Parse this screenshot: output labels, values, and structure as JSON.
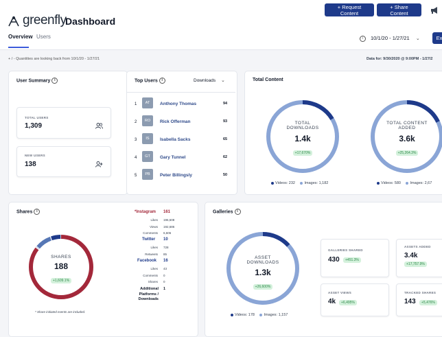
{
  "app": {
    "logo_text": "greenfly",
    "page_title": "Dashboard"
  },
  "header": {
    "request_btn": "+ Request Content",
    "share_btn": "+ Share Content",
    "date_range": "10/1/20 - 1/27/21",
    "export_btn": "Ex"
  },
  "tabs": [
    {
      "label": "Overview"
    },
    {
      "label": "Users"
    }
  ],
  "notes": {
    "left": "+ / - Quantities are looking back from 10/1/20 - 1/27/21",
    "right": "Data for: 9/30/2020 @ 9:00PM - 1/27/2"
  },
  "user_summary": {
    "title": "User Summary",
    "total_label": "TOTAL USERS",
    "total_value": "1,309",
    "new_label": "NEW USERS",
    "new_value": "138"
  },
  "top_users": {
    "title": "Top Users",
    "filter": "Downloads",
    "rows": [
      {
        "rank": "1",
        "initials": "AT",
        "name": "Anthony Thomas",
        "value": "94"
      },
      {
        "rank": "2",
        "initials": "RO",
        "name": "Rick Offerman",
        "value": "93"
      },
      {
        "rank": "3",
        "initials": "IS",
        "name": "Isabella Sacks",
        "value": "65"
      },
      {
        "rank": "4",
        "initials": "GT",
        "name": "Gary Tunnel",
        "value": "62"
      },
      {
        "rank": "5",
        "initials": "PB",
        "name": "Peter Billingsly",
        "value": "50"
      }
    ]
  },
  "total_content": {
    "title": "Total Content",
    "downloads": {
      "label1": "TOTAL",
      "label2": "DOWNLOADS",
      "value": "1.4k",
      "delta": "+17,670%",
      "videos": "Videos: 232",
      "images": "Images: 1,182",
      "videos_count": 232,
      "images_count": 1182
    },
    "added": {
      "label1": "TOTAL CONTENT",
      "label2": "ADDED",
      "value": "3.6k",
      "delta": "+25,264.3%",
      "videos": "Videos: 580",
      "images": "Images: 2,67",
      "videos_count": 580,
      "images_count": 2670
    }
  },
  "shares": {
    "title": "Shares",
    "ring_label": "SHARES",
    "ring_value": "188",
    "ring_delta": "+1,609.1%",
    "footnote": "* Share initiated events are included.",
    "instagram": {
      "name": "*Instagram",
      "total": "161",
      "rows": [
        {
          "k": "Likes",
          "v": "196,508"
        },
        {
          "k": "Views",
          "v": "192,686"
        },
        {
          "k": "Comments",
          "v": "6,606"
        }
      ],
      "share_count": 161
    },
    "twitter": {
      "name": "Twitter",
      "total": "10",
      "rows": [
        {
          "k": "Likes",
          "v": "728"
        },
        {
          "k": "Retweets",
          "v": "85"
        }
      ],
      "share_count": 10
    },
    "facebook": {
      "name": "Facebook",
      "total": "16",
      "rows": [
        {
          "k": "Likes",
          "v": "43"
        },
        {
          "k": "Comments",
          "v": "0"
        },
        {
          "k": "Shares",
          "v": "0"
        }
      ],
      "share_count": 16
    },
    "additional": {
      "label1": "Additional",
      "label2": "Platforms /",
      "label3": "Downloads",
      "value": "1",
      "share_count": 1
    },
    "colors": {
      "instagram": "#a3283a",
      "twitter": "#1e3a8a",
      "facebook": "#5677b5",
      "additional": "#8aa5d6"
    }
  },
  "galleries": {
    "title": "Galleries",
    "ring_label1": "ASSET",
    "ring_label2": "DOWNLOADS",
    "ring_value": "1.3k",
    "ring_delta": "+26,600%",
    "videos": "Videos: 178",
    "images": "Images: 1,157",
    "videos_count": 178,
    "images_count": 1157,
    "stats": [
      {
        "label": "GALLERIES SHARED",
        "value": "430",
        "delta": "+451.3%"
      },
      {
        "label": "ASSETS ADDED",
        "value": "3.4k",
        "delta": "+17,757.9%"
      },
      {
        "label": "ASSET VIEWS",
        "value": "4k",
        "delta": "+6,495%"
      },
      {
        "label": "TRACKED SHARES",
        "value": "143",
        "delta": "+5,476%"
      }
    ]
  },
  "colors": {
    "primary": "#1e3a8a",
    "ring_light": "#8aa5d6",
    "ring_dark": "#1e3a8a",
    "badge_bg": "#d4f1dc",
    "badge_text": "#2f8a4a"
  }
}
